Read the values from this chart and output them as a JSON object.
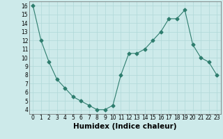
{
  "x": [
    0,
    1,
    2,
    3,
    4,
    5,
    6,
    7,
    8,
    9,
    10,
    11,
    12,
    13,
    14,
    15,
    16,
    17,
    18,
    19,
    20,
    21,
    22,
    23
  ],
  "y": [
    16,
    12,
    9.5,
    7.5,
    6.5,
    5.5,
    5.0,
    4.5,
    4.0,
    4.0,
    4.5,
    8.0,
    10.5,
    10.5,
    11.0,
    12.0,
    13.0,
    14.5,
    14.5,
    15.5,
    11.5,
    10.0,
    9.5,
    8.0
  ],
  "line_color": "#2e7d6e",
  "marker": "D",
  "marker_size": 2.5,
  "bg_color": "#cdeaea",
  "grid_color": "#b0d8d8",
  "xlabel": "Humidex (Indice chaleur)",
  "xlim": [
    -0.5,
    23.5
  ],
  "ylim": [
    3.5,
    16.5
  ],
  "yticks": [
    4,
    5,
    6,
    7,
    8,
    9,
    10,
    11,
    12,
    13,
    14,
    15,
    16
  ],
  "xticks": [
    0,
    1,
    2,
    3,
    4,
    5,
    6,
    7,
    8,
    9,
    10,
    11,
    12,
    13,
    14,
    15,
    16,
    17,
    18,
    19,
    20,
    21,
    22,
    23
  ],
  "tick_fontsize": 5.5,
  "xlabel_fontsize": 7.5,
  "linewidth": 0.8
}
